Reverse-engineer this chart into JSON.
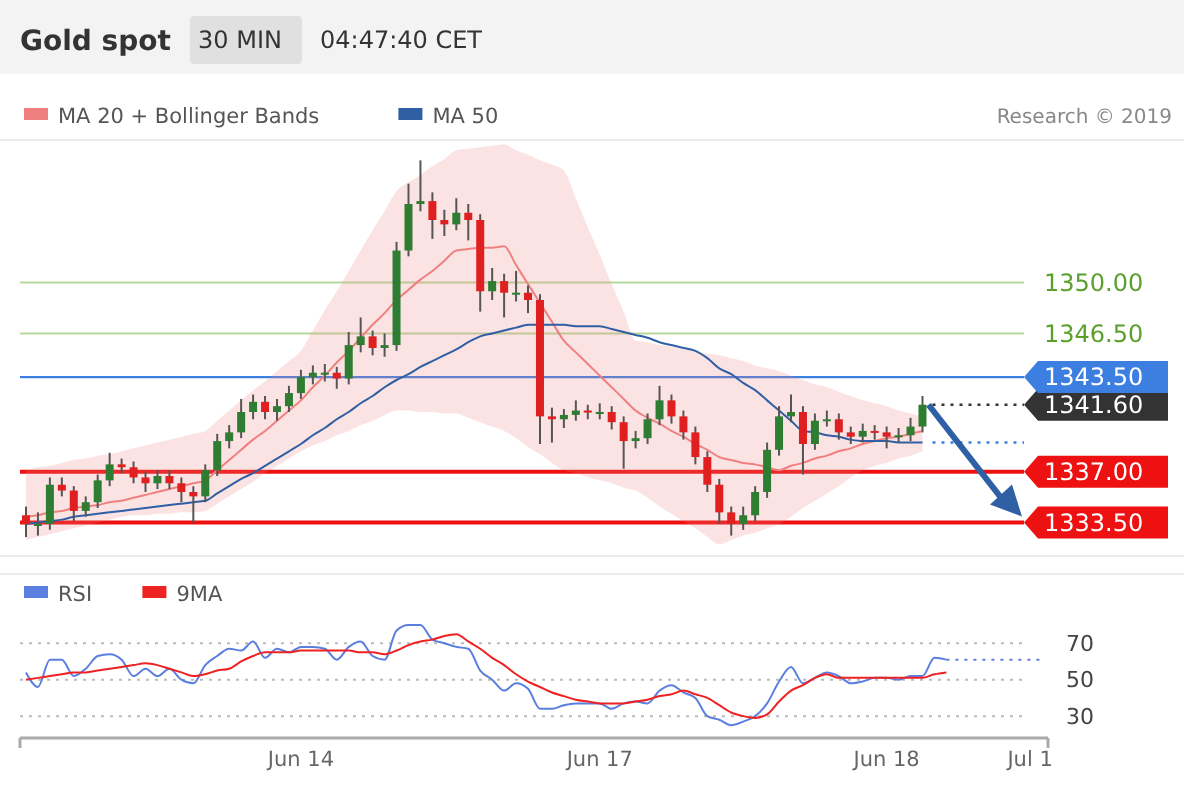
{
  "chart_data": [
    {
      "type": "candlestick",
      "title": "Gold spot",
      "subtitle": "30 MIN",
      "annotations": [
        "04:47:40 CET",
        "Research © 2019"
      ],
      "legend": "top left",
      "tick_labels": "y",
      "ylim": [
        1331.2,
        1359.8
      ],
      "yticks": [
        {
          "value": 1333.5,
          "label": "1333.50"
        },
        {
          "value": 1337,
          "label": "1337.00"
        },
        {
          "value": 1341.6,
          "label": "1341.60"
        },
        {
          "value": 1343.5,
          "label": "1343.50"
        },
        {
          "value": 1346.5,
          "label": "1346.50"
        },
        {
          "value": 1350,
          "label": "1350.00"
        }
      ],
      "categories": [
        null,
        null,
        null,
        null,
        null,
        null,
        null,
        null,
        null,
        null,
        null,
        null,
        null,
        null,
        null,
        null,
        null,
        null,
        null,
        null,
        null,
        null,
        null,
        null,
        null,
        null,
        null,
        null,
        null,
        null,
        null,
        null,
        null,
        null,
        null,
        null,
        null,
        null,
        null,
        null,
        null,
        null,
        null,
        null,
        null,
        null,
        null,
        null,
        null,
        null,
        null,
        null,
        null,
        null,
        null,
        null,
        null,
        null,
        null,
        null,
        null,
        null,
        null,
        null,
        null,
        null,
        null,
        null,
        null,
        null,
        null,
        null,
        null,
        null,
        null,
        null,
        null,
        null,
        null,
        null,
        null,
        null,
        null,
        null,
        null,
        null
      ],
      "ohlc": [
        [
          1334.0,
          1334.6,
          1332.5,
          1333.4
        ],
        [
          1333.4,
          1334.2,
          1332.6,
          1333.4
        ],
        [
          1333.4,
          1336.6,
          1333.0,
          1336.1
        ],
        [
          1336.1,
          1336.6,
          1335.3,
          1335.7
        ],
        [
          1335.7,
          1336.0,
          1333.6,
          1334.3
        ],
        [
          1334.3,
          1335.3,
          1333.9,
          1334.9
        ],
        [
          1334.9,
          1336.8,
          1334.5,
          1336.4
        ],
        [
          1336.4,
          1338.3,
          1336.0,
          1337.5
        ],
        [
          1337.5,
          1337.9,
          1336.9,
          1337.3
        ],
        [
          1337.3,
          1337.7,
          1336.2,
          1336.6
        ],
        [
          1336.6,
          1337.0,
          1335.6,
          1336.2
        ],
        [
          1336.2,
          1337.1,
          1335.8,
          1336.7
        ],
        [
          1336.7,
          1337.1,
          1335.8,
          1336.2
        ],
        [
          1336.2,
          1336.6,
          1334.9,
          1335.6
        ],
        [
          1335.6,
          1336.0,
          1333.5,
          1335.3
        ],
        [
          1335.3,
          1337.5,
          1334.9,
          1337.1
        ],
        [
          1337.1,
          1339.6,
          1336.7,
          1339.1
        ],
        [
          1339.1,
          1340.2,
          1338.6,
          1339.7
        ],
        [
          1339.7,
          1342.0,
          1339.3,
          1341.1
        ],
        [
          1341.1,
          1342.3,
          1340.6,
          1341.8
        ],
        [
          1341.8,
          1342.2,
          1340.6,
          1341.1
        ],
        [
          1341.1,
          1342.0,
          1340.5,
          1341.5
        ],
        [
          1341.5,
          1342.9,
          1341.1,
          1342.4
        ],
        [
          1342.4,
          1344.0,
          1342.0,
          1343.5
        ],
        [
          1343.5,
          1344.3,
          1343.0,
          1343.8
        ],
        [
          1343.8,
          1344.4,
          1343.2,
          1343.8
        ],
        [
          1343.8,
          1344.2,
          1342.7,
          1343.4
        ],
        [
          1343.4,
          1346.6,
          1343.0,
          1345.7
        ],
        [
          1345.7,
          1347.6,
          1345.2,
          1346.3
        ],
        [
          1346.3,
          1346.7,
          1345.0,
          1345.5
        ],
        [
          1345.5,
          1346.5,
          1344.9,
          1345.7
        ],
        [
          1345.7,
          1352.8,
          1345.3,
          1352.2
        ],
        [
          1352.2,
          1356.8,
          1351.8,
          1355.4
        ],
        [
          1355.4,
          1358.4,
          1354.9,
          1355.6
        ],
        [
          1355.6,
          1356.2,
          1353.0,
          1354.3
        ],
        [
          1354.3,
          1355.0,
          1353.2,
          1354.0
        ],
        [
          1354.0,
          1355.8,
          1353.6,
          1354.8
        ],
        [
          1354.8,
          1355.4,
          1352.9,
          1354.3
        ],
        [
          1354.3,
          1354.7,
          1348.0,
          1349.4
        ],
        [
          1349.4,
          1351.0,
          1348.8,
          1350.1
        ],
        [
          1350.1,
          1350.6,
          1347.6,
          1349.3
        ],
        [
          1349.3,
          1350.8,
          1348.7,
          1349.3
        ],
        [
          1349.3,
          1349.8,
          1347.9,
          1348.8
        ],
        [
          1348.8,
          1349.2,
          1338.9,
          1340.8
        ],
        [
          1340.8,
          1341.4,
          1339.0,
          1340.6
        ],
        [
          1340.6,
          1341.3,
          1340.0,
          1340.9
        ],
        [
          1340.9,
          1341.9,
          1340.5,
          1341.2
        ],
        [
          1341.2,
          1341.6,
          1340.6,
          1341.1
        ],
        [
          1341.1,
          1341.7,
          1340.6,
          1341.1
        ],
        [
          1341.1,
          1341.5,
          1339.9,
          1340.4
        ],
        [
          1340.4,
          1340.8,
          1337.2,
          1339.1
        ],
        [
          1339.1,
          1339.8,
          1338.6,
          1339.3
        ],
        [
          1339.3,
          1341.0,
          1338.9,
          1340.6
        ],
        [
          1340.6,
          1342.9,
          1340.2,
          1341.9
        ],
        [
          1341.9,
          1342.3,
          1340.3,
          1340.8
        ],
        [
          1340.8,
          1341.2,
          1339.2,
          1339.7
        ],
        [
          1339.7,
          1340.1,
          1337.5,
          1338.0
        ],
        [
          1338.0,
          1338.4,
          1335.6,
          1336.1
        ],
        [
          1336.1,
          1336.5,
          1333.4,
          1334.2
        ],
        [
          1334.2,
          1334.6,
          1332.6,
          1333.4
        ],
        [
          1333.4,
          1334.6,
          1333.0,
          1334.0
        ],
        [
          1334.0,
          1336.0,
          1333.6,
          1335.6
        ],
        [
          1335.6,
          1339.0,
          1335.2,
          1338.5
        ],
        [
          1338.5,
          1341.5,
          1338.1,
          1340.8
        ],
        [
          1340.8,
          1342.3,
          1340.4,
          1341.1
        ],
        [
          1341.1,
          1341.5,
          1336.8,
          1338.9
        ],
        [
          1338.9,
          1341.0,
          1338.5,
          1340.5
        ],
        [
          1340.5,
          1341.2,
          1340.1,
          1340.6
        ],
        [
          1340.6,
          1341.0,
          1339.2,
          1339.7
        ],
        [
          1339.7,
          1340.1,
          1338.9,
          1339.4
        ],
        [
          1339.4,
          1340.3,
          1339.0,
          1339.8
        ],
        [
          1339.8,
          1340.2,
          1339.2,
          1339.7
        ],
        [
          1339.7,
          1340.1,
          1338.6,
          1339.4
        ],
        [
          1339.4,
          1340.0,
          1339.0,
          1339.5
        ],
        [
          1339.5,
          1340.7,
          1339.1,
          1340.1
        ],
        [
          1340.1,
          1342.2,
          1339.7,
          1341.6
        ],
        null,
        null,
        null,
        null,
        null,
        null,
        null,
        null,
        null,
        null
      ],
      "series": [
        {
          "name": "MA 20 + Bollinger Bands",
          "type": "line",
          "color": "#f08080",
          "values": [
            1333.9,
            1334.0,
            1334.2,
            1334.3,
            1334.5,
            1334.6,
            1334.7,
            1334.9,
            1335.0,
            1335.2,
            1335.4,
            1335.6,
            1335.8,
            1336.0,
            1336.2,
            1336.4,
            1337.1,
            1337.8,
            1338.5,
            1339.2,
            1339.8,
            1340.5,
            1341.2,
            1341.9,
            1342.8,
            1343.6,
            1344.5,
            1345.3,
            1346.2,
            1347.1,
            1347.9,
            1348.8,
            1349.5,
            1350.2,
            1350.8,
            1351.5,
            1352.2,
            1352.3,
            1352.4,
            1352.4,
            1352.5,
            1351.2,
            1349.9,
            1348.6,
            1347.3,
            1346.0,
            1345.2,
            1344.4,
            1343.6,
            1342.8,
            1342.0,
            1341.2,
            1340.7,
            1340.3,
            1339.8,
            1339.4,
            1338.9,
            1338.5,
            1338.0,
            1337.8,
            1337.6,
            1337.5,
            1337.3,
            1337.1,
            1337.4,
            1337.6,
            1337.9,
            1338.1,
            1338.4,
            1338.6,
            1338.9,
            1339.1,
            1339.3,
            1339.4,
            1339.6,
            1339.8,
            null,
            null,
            null,
            null,
            null,
            null,
            null,
            null,
            null,
            null
          ],
          "lower": [
            1332.3,
            1332.5,
            1332.7,
            1332.9,
            1333.1,
            1333.3,
            1333.5,
            1333.7,
            1333.9,
            1334.0,
            1334.0,
            1334.1,
            1334.1,
            1334.2,
            1334.2,
            1334.3,
            1334.8,
            1335.3,
            1335.8,
            1336.3,
            1336.9,
            1337.4,
            1337.9,
            1338.4,
            1338.8,
            1339.1,
            1339.5,
            1339.8,
            1340.2,
            1340.5,
            1340.9,
            1341.2,
            1341.2,
            1341.1,
            1341.1,
            1341.0,
            1341.0,
            1340.7,
            1340.4,
            1340.1,
            1339.8,
            1339.3,
            1338.7,
            1338.2,
            1337.6,
            1337.1,
            1336.9,
            1336.6,
            1336.4,
            1336.2,
            1335.9,
            1335.7,
            1335.2,
            1334.6,
            1334.1,
            1333.6,
            1333.1,
            1332.5,
            1332.0,
            1332.3,
            1332.6,
            1332.8,
            1333.1,
            1333.4,
            1333.9,
            1334.5,
            1335.0,
            1335.5,
            1336.0,
            1336.6,
            1337.1,
            1337.4,
            1337.6,
            1337.9,
            1338.1,
            1338.4,
            null,
            null,
            null,
            null,
            null,
            null,
            null,
            null,
            null,
            null
          ],
          "upper": [
            1337.1,
            1337.3,
            1337.4,
            1337.6,
            1337.8,
            1337.9,
            1338.1,
            1338.2,
            1338.4,
            1338.6,
            1338.8,
            1339.0,
            1339.2,
            1339.4,
            1339.6,
            1339.8,
            1340.5,
            1341.2,
            1341.9,
            1342.6,
            1343.2,
            1343.9,
            1344.6,
            1345.3,
            1346.7,
            1348.1,
            1349.4,
            1350.8,
            1352.2,
            1353.6,
            1354.9,
            1356.3,
            1356.9,
            1357.4,
            1358.0,
            1358.5,
            1359.1,
            1359.2,
            1359.3,
            1359.4,
            1359.5,
            1359.1,
            1358.8,
            1358.4,
            1358.1,
            1357.7,
            1355.8,
            1353.8,
            1351.9,
            1349.9,
            1348.0,
            1346.0,
            1345.9,
            1345.7,
            1345.6,
            1345.4,
            1345.3,
            1345.1,
            1345.0,
            1344.8,
            1344.6,
            1344.3,
            1344.1,
            1343.9,
            1343.6,
            1343.3,
            1343.0,
            1342.8,
            1342.5,
            1342.2,
            1341.9,
            1341.7,
            1341.5,
            1341.2,
            1341.0,
            1340.8,
            null,
            null,
            null,
            null,
            null,
            null,
            null,
            null,
            null,
            null
          ]
        },
        {
          "name": "MA 50",
          "type": "line",
          "color": "#2f5fa5",
          "values": [
            1333.4,
            1333.5,
            1333.6,
            1333.7,
            1333.9,
            1334.0,
            1334.1,
            1334.2,
            1334.3,
            1334.4,
            1334.5,
            1334.6,
            1334.7,
            1334.8,
            1334.9,
            1335.0,
            1335.5,
            1336.0,
            1336.5,
            1336.9,
            1337.4,
            1337.9,
            1338.4,
            1338.9,
            1339.5,
            1340.0,
            1340.6,
            1341.1,
            1341.7,
            1342.2,
            1342.8,
            1343.3,
            1343.7,
            1344.2,
            1344.6,
            1345.0,
            1345.4,
            1345.9,
            1346.3,
            1346.5,
            1346.7,
            1346.9,
            1347.1,
            1347.1,
            1347.1,
            1347.1,
            1347.0,
            1347.0,
            1347.0,
            1346.8,
            1346.6,
            1346.4,
            1346.2,
            1345.9,
            1345.7,
            1345.5,
            1345.3,
            1344.8,
            1344.1,
            1343.7,
            1343.1,
            1342.6,
            1341.9,
            1341.2,
            1340.5,
            1339.8,
            1339.7,
            1339.5,
            1339.4,
            1339.2,
            1339.1,
            1339.1,
            1339.1,
            1339.0,
            1339.0,
            1339.0,
            null,
            null,
            null,
            null,
            null,
            null,
            null,
            null,
            null,
            null
          ]
        }
      ],
      "ref_lines": [
        {
          "axis": "y",
          "value": 1350,
          "color": "#b5d99c",
          "line_style": "solid"
        },
        {
          "axis": "y",
          "value": 1346.5,
          "color": "#b5d99c",
          "line_style": "solid"
        },
        {
          "axis": "y",
          "value": 1343.5,
          "color": "#3d7fe0",
          "line_style": "solid"
        },
        {
          "axis": "y",
          "value": 1341.6,
          "color": "#333333",
          "line_style": "dotted"
        },
        {
          "axis": "y",
          "value": 1339.0,
          "color": "#3d7fe0",
          "line_style": "dotted"
        },
        {
          "axis": "y",
          "value": 1337,
          "color": "#ee1111",
          "line_style": "solid"
        },
        {
          "axis": "y",
          "value": 1333.5,
          "color": "#ee1111",
          "line_style": "solid"
        }
      ]
    },
    {
      "type": "line",
      "legend": "top left",
      "grid": "y",
      "ylim": [
        18,
        108
      ],
      "yticks": [
        30,
        50,
        70
      ],
      "categories": [
        null,
        null,
        null,
        null,
        null,
        null,
        null,
        null,
        null,
        null,
        null,
        null,
        null,
        null,
        null,
        null,
        null,
        null,
        null,
        null,
        null,
        null,
        null,
        "Jun 14",
        null,
        null,
        null,
        null,
        null,
        null,
        null,
        null,
        null,
        null,
        null,
        null,
        null,
        null,
        null,
        null,
        null,
        null,
        null,
        null,
        null,
        null,
        null,
        null,
        "Jun 17",
        null,
        null,
        null,
        null,
        null,
        null,
        null,
        null,
        null,
        null,
        null,
        null,
        null,
        null,
        null,
        null,
        null,
        null,
        null,
        null,
        null,
        null,
        null,
        "Jun 18",
        null,
        null,
        null,
        null,
        null,
        null,
        null,
        null,
        null,
        null,
        null,
        "Jul 1",
        null
      ],
      "series": [
        {
          "name": "RSI",
          "color": "#5b7fe0",
          "values": [
            54,
            46,
            61,
            61,
            52,
            56,
            63,
            64,
            61,
            52,
            56,
            52,
            56,
            50,
            48,
            58,
            63,
            67,
            66,
            71,
            62,
            67,
            65,
            68,
            68,
            67,
            61,
            68,
            71,
            63,
            61,
            77,
            80,
            80,
            72,
            70,
            68,
            67,
            55,
            50,
            44,
            48,
            45,
            34,
            34,
            36,
            37,
            37,
            37,
            34,
            37,
            38,
            37,
            44,
            47,
            43,
            40,
            30,
            28,
            25,
            27,
            30,
            37,
            49,
            57,
            48,
            51,
            54,
            52,
            48,
            49,
            51,
            51,
            50,
            52,
            52,
            62,
            61,
            null,
            null,
            null,
            null,
            null,
            null,
            null,
            null
          ]
        },
        {
          "name": "9MA",
          "color": "#ee2222",
          "values": [
            50,
            51,
            52,
            53,
            54,
            54,
            55,
            56,
            57,
            58,
            59,
            58,
            56,
            54,
            52,
            53,
            55,
            56,
            60,
            63,
            65,
            65,
            65,
            66,
            66,
            66,
            66,
            66,
            65,
            65,
            64,
            66,
            69,
            71,
            72,
            74,
            75,
            71,
            67,
            62,
            58,
            53,
            49,
            46,
            43,
            41,
            39,
            38,
            37,
            37,
            37,
            38,
            39,
            41,
            42,
            44,
            42,
            40,
            36,
            32,
            30,
            29,
            31,
            38,
            44,
            47,
            51,
            53,
            51,
            51,
            51,
            51,
            51,
            51,
            51,
            51,
            53,
            54,
            null,
            null,
            null,
            null,
            null,
            null,
            null,
            null
          ]
        },
        {
          "color": "#5b7fe0",
          "line_style": "dotted",
          "values": [
            null,
            null,
            null,
            null,
            null,
            null,
            null,
            null,
            null,
            null,
            null,
            null,
            null,
            null,
            null,
            null,
            null,
            null,
            null,
            null,
            null,
            null,
            null,
            null,
            null,
            null,
            null,
            null,
            null,
            null,
            null,
            null,
            null,
            null,
            null,
            null,
            null,
            null,
            null,
            null,
            null,
            null,
            null,
            null,
            null,
            null,
            null,
            null,
            null,
            null,
            null,
            null,
            null,
            null,
            null,
            null,
            null,
            null,
            null,
            null,
            null,
            null,
            null,
            null,
            null,
            null,
            null,
            null,
            null,
            null,
            null,
            null,
            null,
            null,
            null,
            null,
            null,
            61,
            61,
            61,
            61,
            61,
            61,
            61,
            61,
            61
          ]
        }
      ]
    }
  ]
}
